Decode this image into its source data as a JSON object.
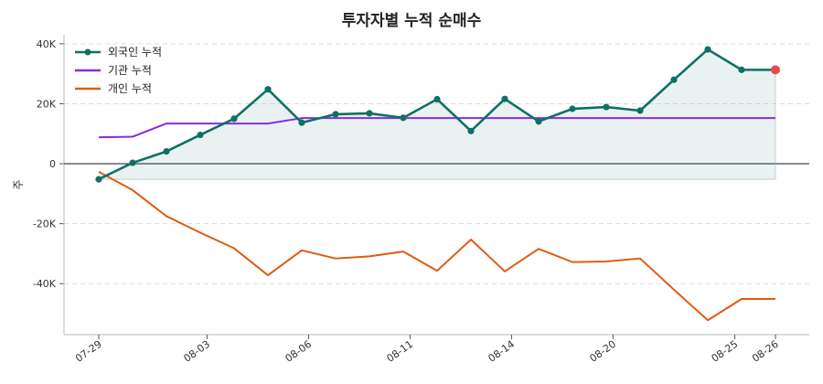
{
  "chart_data": {
    "type": "line",
    "title": "투자자별 누적 순매수",
    "xlabel": "",
    "ylabel": "주",
    "ylim": [
      -57000,
      43000
    ],
    "yticks": [
      40000,
      20000,
      0,
      -20000,
      -40000
    ],
    "ytick_labels": [
      "40K",
      "20K",
      "0",
      "-20K",
      "-40K"
    ],
    "x": [
      "07-29",
      "07-30",
      "07-31",
      "08-01",
      "08-02",
      "08-05",
      "08-06",
      "08-07",
      "08-08",
      "08-09",
      "08-12",
      "08-13",
      "08-14",
      "08-16",
      "08-19",
      "08-20",
      "08-21",
      "08-22",
      "08-23",
      "08-25",
      "08-26"
    ],
    "x_trading_index": [
      0,
      1,
      2,
      3,
      4,
      5,
      6,
      7,
      8,
      9,
      10,
      11,
      12,
      13,
      14,
      15,
      16,
      17,
      18,
      19,
      20
    ],
    "xtick_labels": [
      "07-29",
      "08-03",
      "08-06",
      "08-11",
      "08-14",
      "08-20",
      "08-25",
      "08-26"
    ],
    "xtick_positions": [
      0,
      3.2,
      6.2,
      9.2,
      12.2,
      15.2,
      18.8,
      20
    ],
    "grid": "y-dashed",
    "legend_placement": "top-left",
    "series": [
      {
        "name": "외국인 누적",
        "color": "#0f7066",
        "markers": true,
        "values": [
          -5200,
          300,
          4100,
          9600,
          15000,
          24800,
          13700,
          16500,
          16800,
          15300,
          21500,
          10900,
          21600,
          14100,
          18300,
          18900,
          17700,
          28000,
          38100,
          31300,
          31300
        ]
      },
      {
        "name": "기관 누적",
        "color": "#8a2be2",
        "markers": false,
        "values": [
          8800,
          9000,
          13400,
          13400,
          13400,
          13400,
          15200,
          15200,
          15200,
          15200,
          15200,
          15200,
          15200,
          15200,
          15200,
          15200,
          15200,
          15200,
          15200,
          15200,
          15200
        ]
      },
      {
        "name": "개인 누적",
        "color": "#e05a14",
        "markers": false,
        "values": [
          -2700,
          -8800,
          -17500,
          -23000,
          -28200,
          -37200,
          -28900,
          -31600,
          -30900,
          -29300,
          -35700,
          -25300,
          -35900,
          -28400,
          -32800,
          -32600,
          -31600,
          -42000,
          -52200,
          -45100,
          -45100
        ]
      }
    ],
    "last_point_highlight": {
      "series": "외국인 누적",
      "color": "#e84a4a"
    },
    "zero_line": true
  }
}
